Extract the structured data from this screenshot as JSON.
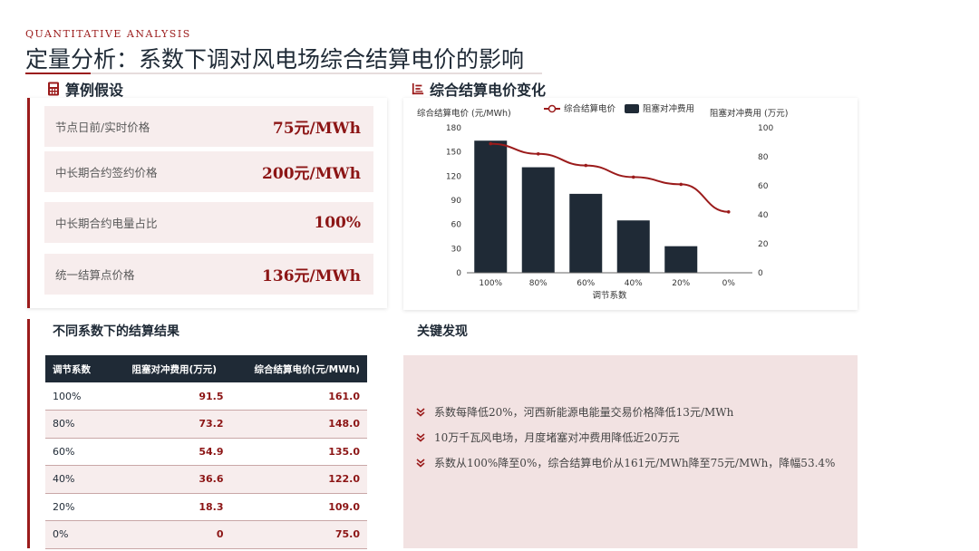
{
  "header": {
    "kicker": "QUANTITATIVE ANALYSIS",
    "title": "定量分析：系数下调对风电场综合结算电价的影响"
  },
  "assumptions": {
    "heading": "算例假设",
    "items": [
      {
        "label": "节点日前/实时价格",
        "value": "75元/MWh"
      },
      {
        "label": "中长期合约签约价格",
        "value": "200元/MWh"
      },
      {
        "label": "中长期合约电量占比",
        "value": "100%"
      },
      {
        "label": "统一结算点价格",
        "value": "136元/MWh"
      }
    ]
  },
  "chart_section": {
    "heading": "综合结算电价变化"
  },
  "chart_data": {
    "type": "bar",
    "categories": [
      "100%",
      "80%",
      "60%",
      "40%",
      "20%",
      "0%"
    ],
    "xlabel": "调节系数",
    "ylabel_left": "综合结算电价 (元/MWh)",
    "ylabel_right": "阻塞对冲费用 (万元)",
    "ylim_left": [
      0,
      180
    ],
    "ylim_right": [
      0,
      100
    ],
    "yticks_left": [
      "0",
      "30",
      "60",
      "90",
      "120",
      "150",
      "180"
    ],
    "yticks_right": [
      "0",
      "20",
      "40",
      "60",
      "80",
      "100"
    ],
    "legend_position": "top",
    "series": [
      {
        "name": "综合结算电价",
        "type": "line",
        "axis": "right",
        "color": "#9b1b1b",
        "values": [
          89,
          82,
          74,
          66,
          61,
          42
        ]
      },
      {
        "name": "阻塞对冲费用",
        "type": "bar",
        "axis": "left",
        "color": "#1f2a36",
        "values": [
          164,
          131,
          98,
          65,
          33,
          0
        ]
      }
    ]
  },
  "results": {
    "heading": "不同系数下的结算结果",
    "columns": [
      "调节系数",
      "阻塞对冲费用(万元)",
      "综合结算电价(元/MWh)"
    ],
    "rows": [
      [
        "100%",
        "91.5",
        "161.0"
      ],
      [
        "80%",
        "73.2",
        "148.0"
      ],
      [
        "60%",
        "54.9",
        "135.0"
      ],
      [
        "40%",
        "36.6",
        "122.0"
      ],
      [
        "20%",
        "18.3",
        "109.0"
      ],
      [
        "0%",
        "0",
        "75.0"
      ]
    ]
  },
  "findings": {
    "heading": "关键发现",
    "items": [
      "系数每降低20%，河西新能源电能量交易价格降低13元/MWh",
      "10万千瓦风电场，月度堵塞对冲费用降低近20万元",
      "系数从100%降至0%，综合结算电价从161元/MWh降至75元/MWh，降幅53.4%"
    ]
  },
  "icons": {
    "assumptions": "calculator-icon",
    "chart": "bar-chart-icon",
    "finding_bullet": "double-chevron-down-icon"
  }
}
